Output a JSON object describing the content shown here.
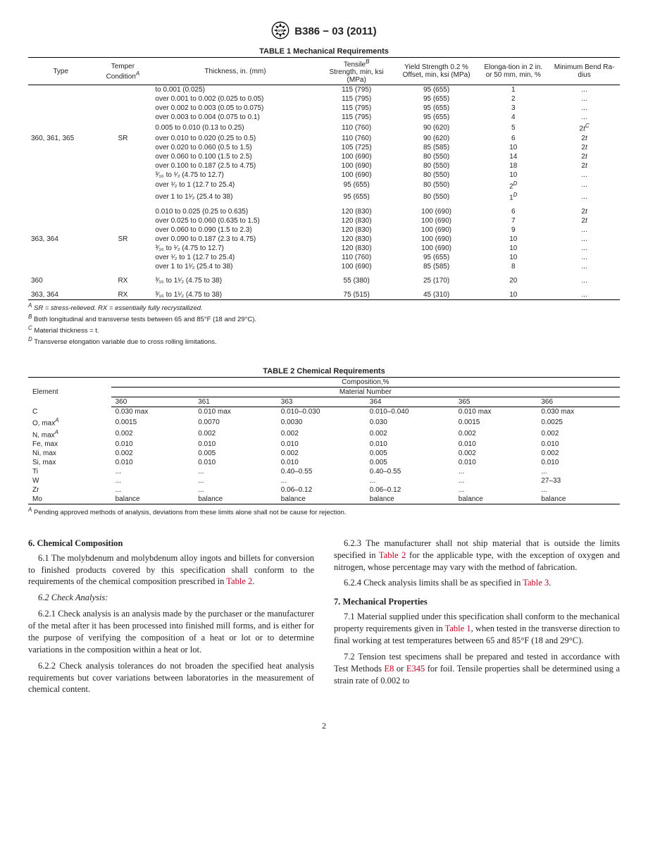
{
  "header": {
    "standard": "B386 − 03 (2011)"
  },
  "table1": {
    "caption": "TABLE 1 Mechanical Requirements",
    "headers": {
      "type": "Type",
      "temper": "Temper Condition",
      "temper_sup": "A",
      "thickness": "Thickness, in. (mm)",
      "tensile": "Tensile",
      "tensile_sup": "B",
      "tensile_sub": "Strength, min, ksi (MPa)",
      "yield": "Yield Strength 0.2 % Offset, min, ksi (MPa)",
      "elong": "Elonga-tion in 2 in. or 50 mm, min, %",
      "bend": "Minimum Bend Ra-dius"
    },
    "group1": {
      "type": "360, 361, 365",
      "temper": "SR",
      "rows": [
        {
          "th": "to 0.001 (0.025)",
          "ts": "115 (795)",
          "ys": "95 (655)",
          "el": "1",
          "br": "..."
        },
        {
          "th": "over 0.001 to 0.002 (0.025 to 0.05)",
          "ts": "115 (795)",
          "ys": "95 (655)",
          "el": "2",
          "br": "..."
        },
        {
          "th": "over 0.002 to 0.003 (0.05 to 0.075)",
          "ts": "115 (795)",
          "ys": "95 (655)",
          "el": "3",
          "br": "..."
        },
        {
          "th": "over 0.003 to 0.004 (0.075 to 0.1)",
          "ts": "115 (795)",
          "ys": "95 (655)",
          "el": "4",
          "br": "..."
        },
        {
          "th": "0.005 to 0.010 (0.13 to 0.25)",
          "ts": "110 (760)",
          "ys": "90 (620)",
          "el": "5",
          "br": "2t",
          "br_sup": "C"
        },
        {
          "th": "over 0.010 to 0.020 (0.25 to 0.5)",
          "ts": "110 (760)",
          "ys": "90 (620)",
          "el": "6",
          "br": "2t"
        },
        {
          "th": "over 0.020 to 0.060 (0.5 to 1.5)",
          "ts": "105 (725)",
          "ys": "85 (585)",
          "el": "10",
          "br": "2t"
        },
        {
          "th": "over 0.060 to 0.100 (1.5 to 2.5)",
          "ts": "100 (690)",
          "ys": "80 (550)",
          "el": "14",
          "br": "2t"
        },
        {
          "th": "over 0.100 to 0.187 (2.5 to 4.75)",
          "ts": "100 (690)",
          "ys": "80 (550)",
          "el": "18",
          "br": "2t"
        },
        {
          "th": "³⁄₁₆ to ¹⁄₂ (4.75 to 12.7)",
          "ts": "100 (690)",
          "ys": "80 (550)",
          "el": "10",
          "br": "..."
        },
        {
          "th": "over ¹⁄₂ to 1 (12.7 to 25.4)",
          "ts": "95 (655)",
          "ys": "80 (550)",
          "el": "2",
          "el_sup": "D",
          "br": "..."
        },
        {
          "th": "over 1 to 1¹⁄₂ (25.4 to 38)",
          "ts": "95 (655)",
          "ys": "80 (550)",
          "el": "1",
          "el_sup": "D",
          "br": "..."
        }
      ]
    },
    "group2": {
      "type": "363, 364",
      "temper": "SR",
      "rows": [
        {
          "th": "0.010 to 0.025 (0.25 to 0.635)",
          "ts": "120 (830)",
          "ys": "100 (690)",
          "el": "6",
          "br": "2t"
        },
        {
          "th": "over 0.025 to 0.060 (0.635 to 1.5)",
          "ts": "120 (830)",
          "ys": "100 (690)",
          "el": "7",
          "br": "2t"
        },
        {
          "th": "over 0.060 to 0.090 (1.5 to 2.3)",
          "ts": "120 (830)",
          "ys": "100 (690)",
          "el": "9",
          "br": "..."
        },
        {
          "th": "over 0.090 to 0.187 (2.3 to 4.75)",
          "ts": "120 (830)",
          "ys": "100 (690)",
          "el": "10",
          "br": "..."
        },
        {
          "th": "³⁄₁₆ to ¹⁄₂ (4.75 to 12.7)",
          "ts": "120 (830)",
          "ys": "100 (690)",
          "el": "10",
          "br": "..."
        },
        {
          "th": "over ¹⁄₂ to 1 (12.7 to 25.4)",
          "ts": "110 (760)",
          "ys": "95 (655)",
          "el": "10",
          "br": "..."
        },
        {
          "th": "over 1 to 1¹⁄₂ (25.4 to 38)",
          "ts": "100 (690)",
          "ys": "85 (585)",
          "el": "8",
          "br": "..."
        }
      ]
    },
    "group3": {
      "type": "360",
      "temper": "RX",
      "rows": [
        {
          "th": "³⁄₁₆ to 1¹⁄₂ (4.75 to 38)",
          "ts": "55 (380)",
          "ys": "25 (170)",
          "el": "20",
          "br": "..."
        }
      ]
    },
    "group4": {
      "type": "363, 364",
      "temper": "RX",
      "rows": [
        {
          "th": "³⁄₁₆ to 1¹⁄₂ (4.75 to 38)",
          "ts": "75 (515)",
          "ys": "45 (310)",
          "el": "10",
          "br": "..."
        }
      ]
    },
    "footnotes": {
      "a": " SR = stress-relieved. RX = essentially fully recrystallized.",
      "b": " Both longitudinal and transverse tests between 65 and 85°F (18 and 29°C).",
      "c": " Material thickness = t.",
      "d": " Transverse elongation variable due to cross rolling limitations."
    }
  },
  "table2": {
    "caption": "TABLE 2 Chemical Requirements",
    "comp_head": "Composition,%",
    "matnum_head": "Material Number",
    "element_head": "Element",
    "cols": [
      "360",
      "361",
      "363",
      "364",
      "365",
      "366"
    ],
    "rows": [
      {
        "el": "C",
        "v": [
          "0.030 max",
          "0.010 max",
          "0.010–0.030",
          "0.010–0.040",
          "0.010 max",
          "0.030 max"
        ]
      },
      {
        "el": "O, max",
        "sup": "A",
        "v": [
          "0.0015",
          "0.0070",
          "0.0030",
          "0.030",
          "0.0015",
          "0.0025"
        ]
      },
      {
        "el": "N, max",
        "sup": "A",
        "v": [
          "0.002",
          "0.002",
          "0.002",
          "0.002",
          "0.002",
          "0.002"
        ]
      },
      {
        "el": "Fe, max",
        "v": [
          "0.010",
          "0.010",
          "0.010",
          "0.010",
          "0.010",
          "0.010"
        ]
      },
      {
        "el": "Ni, max",
        "v": [
          "0.002",
          "0.005",
          "0.002",
          "0.005",
          "0.002",
          "0.002"
        ]
      },
      {
        "el": "Si, max",
        "v": [
          "0.010",
          "0.010",
          "0.010",
          "0.005",
          "0.010",
          "0.010"
        ]
      },
      {
        "el": "Ti",
        "v": [
          "...",
          "...",
          "0.40–0.55",
          "0.40–0.55",
          "...",
          "..."
        ]
      },
      {
        "el": "W",
        "v": [
          "...",
          "...",
          "...",
          "...",
          "...",
          "27–33"
        ]
      },
      {
        "el": "Zr",
        "v": [
          "...",
          "...",
          "0.06–0.12",
          "0.06–0.12",
          "...",
          "..."
        ]
      },
      {
        "el": "Mo",
        "v": [
          "balance",
          "balance",
          "balance",
          "balance",
          "balance",
          "balance"
        ]
      }
    ],
    "footnote": " Pending approved methods of analysis, deviations from these limits alone shall not be cause for rejection."
  },
  "body": {
    "s6": {
      "head": "6.  Chemical Composition",
      "p1a": "6.1 The molybdenum and molybdenum alloy ingots and billets for conversion to finished products covered by this specification shall conform to the requirements of the chemical composition prescribed in ",
      "p1link": "Table 2",
      "p1b": ".",
      "p2head": "6.2  Check Analysis:",
      "p3": "6.2.1 Check analysis is an analysis made by the purchaser or the manufacturer of the metal after it has been processed into finished mill forms, and is either for the purpose of verifying the composition of a heat or lot or to determine variations in the composition within a heat or lot.",
      "p4": "6.2.2 Check analysis tolerances do not broaden the specified heat analysis requirements but cover variations between laboratories in the measurement of chemical content.",
      "p5a": "6.2.3 The manufacturer shall not ship material that is outside the limits specified in ",
      "p5link": "Table 2",
      "p5b": " for the applicable type, with the exception of oxygen and nitrogen, whose percentage may vary with the method of fabrication.",
      "p6a": "6.2.4 Check analysis limits shall be as specified in ",
      "p6link": "Table 3",
      "p6b": "."
    },
    "s7": {
      "head": "7.  Mechanical Properties",
      "p1a": "7.1 Material supplied under this specification shall conform to the mechanical property requirements given in ",
      "p1link": "Table 1",
      "p1b": ", when tested in the transverse direction to final working at test temperatures between 65 and 85°F (18 and 29°C).",
      "p2a": "7.2 Tension test specimens shall be prepared and tested in accordance with Test Methods ",
      "p2link1": "E8",
      "p2mid": " or ",
      "p2link2": "E345",
      "p2b": " for foil. Tensile properties shall be determined using a strain rate of 0.002 to"
    }
  },
  "pagenum": "2"
}
